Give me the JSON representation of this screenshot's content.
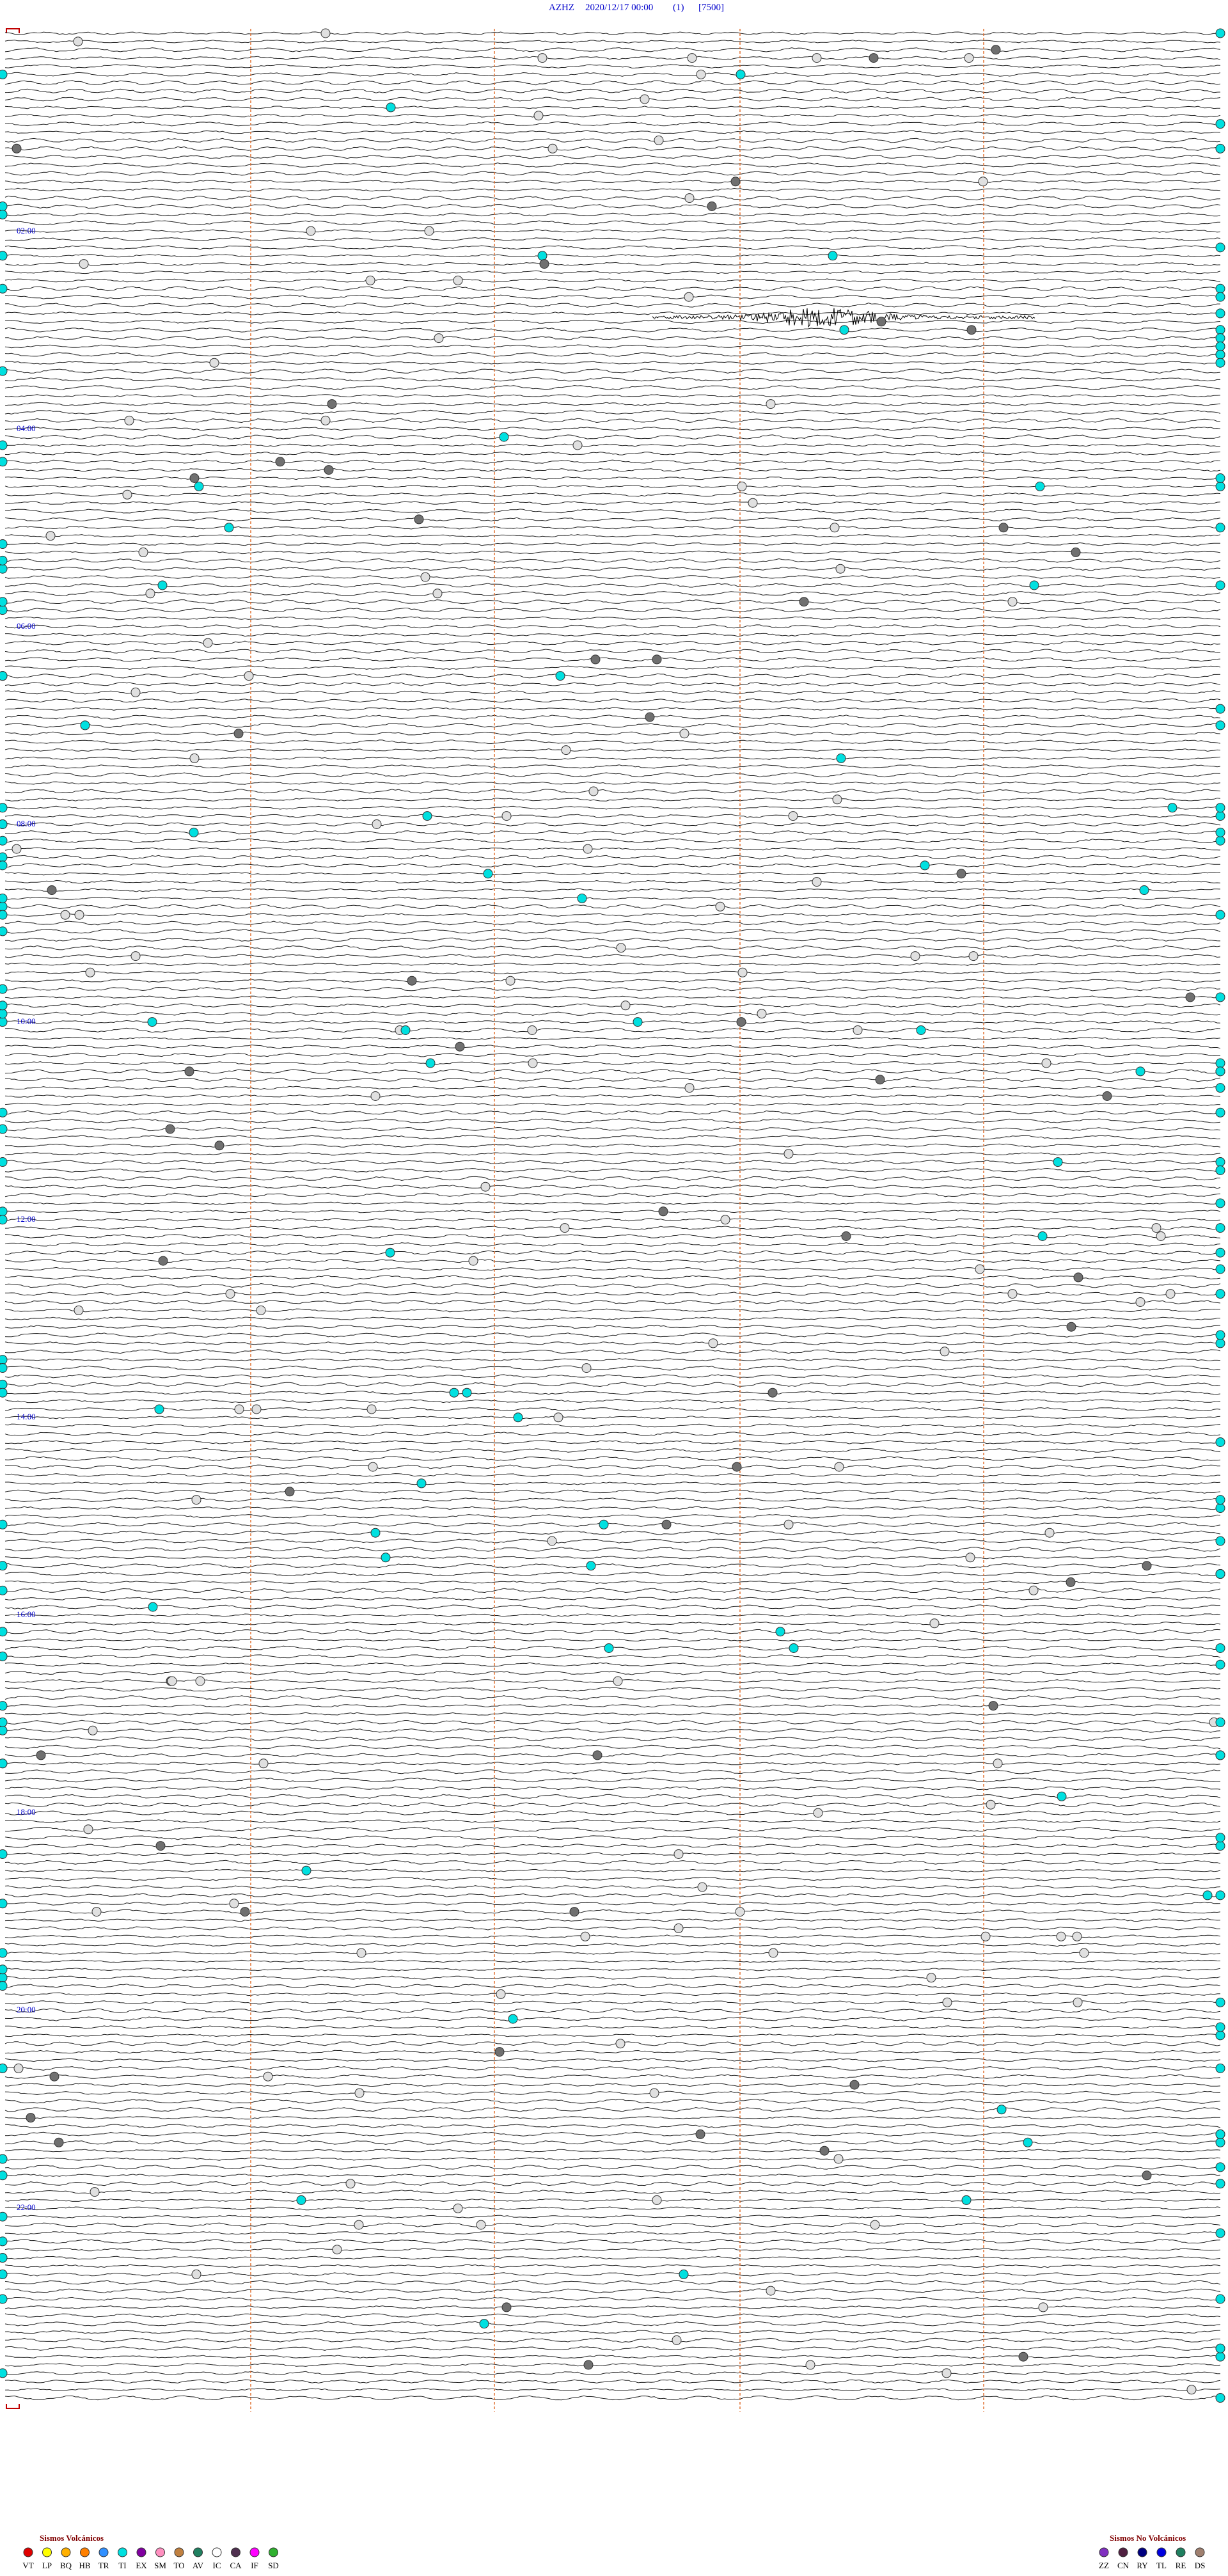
{
  "header": {
    "station": "AZHZ",
    "datetime": "2020/12/17 00:00",
    "channel": "(1)",
    "scale": "[7500]"
  },
  "hour_labels": [
    "02:00",
    "04:00",
    "06:00",
    "08:00",
    "10:00",
    "12:00",
    "14:00",
    "16:00",
    "18:00",
    "20:00",
    "22:00"
  ],
  "legend_volcanic": {
    "title": "Sismos Volcánicos",
    "items": [
      {
        "code": "VT",
        "color": "#e00000"
      },
      {
        "code": "LP",
        "color": "#ffff00"
      },
      {
        "code": "BQ",
        "color": "#ffb000"
      },
      {
        "code": "HB",
        "color": "#ff8000"
      },
      {
        "code": "TR",
        "color": "#3090ff"
      },
      {
        "code": "TI",
        "color": "#00e0e0"
      },
      {
        "code": "EX",
        "color": "#8000a0"
      },
      {
        "code": "SM",
        "color": "#ff90c0"
      },
      {
        "code": "TO",
        "color": "#c08040"
      },
      {
        "code": "AV",
        "color": "#208060"
      },
      {
        "code": "IC",
        "color": "#ffffff"
      },
      {
        "code": "CA",
        "color": "#503050"
      },
      {
        "code": "IF",
        "color": "#ff00ff"
      },
      {
        "code": "SD",
        "color": "#30b030"
      }
    ]
  },
  "legend_non_volcanic": {
    "title": "Sismos No Volcánicos",
    "items": [
      {
        "code": "ZZ",
        "color": "#8030c0"
      },
      {
        "code": "CN",
        "color": "#502040"
      },
      {
        "code": "RY",
        "color": "#000080"
      },
      {
        "code": "TL",
        "color": "#0000e0"
      },
      {
        "code": "RE",
        "color": "#208060"
      },
      {
        "code": "DS",
        "color": "#a08070"
      }
    ]
  }
}
